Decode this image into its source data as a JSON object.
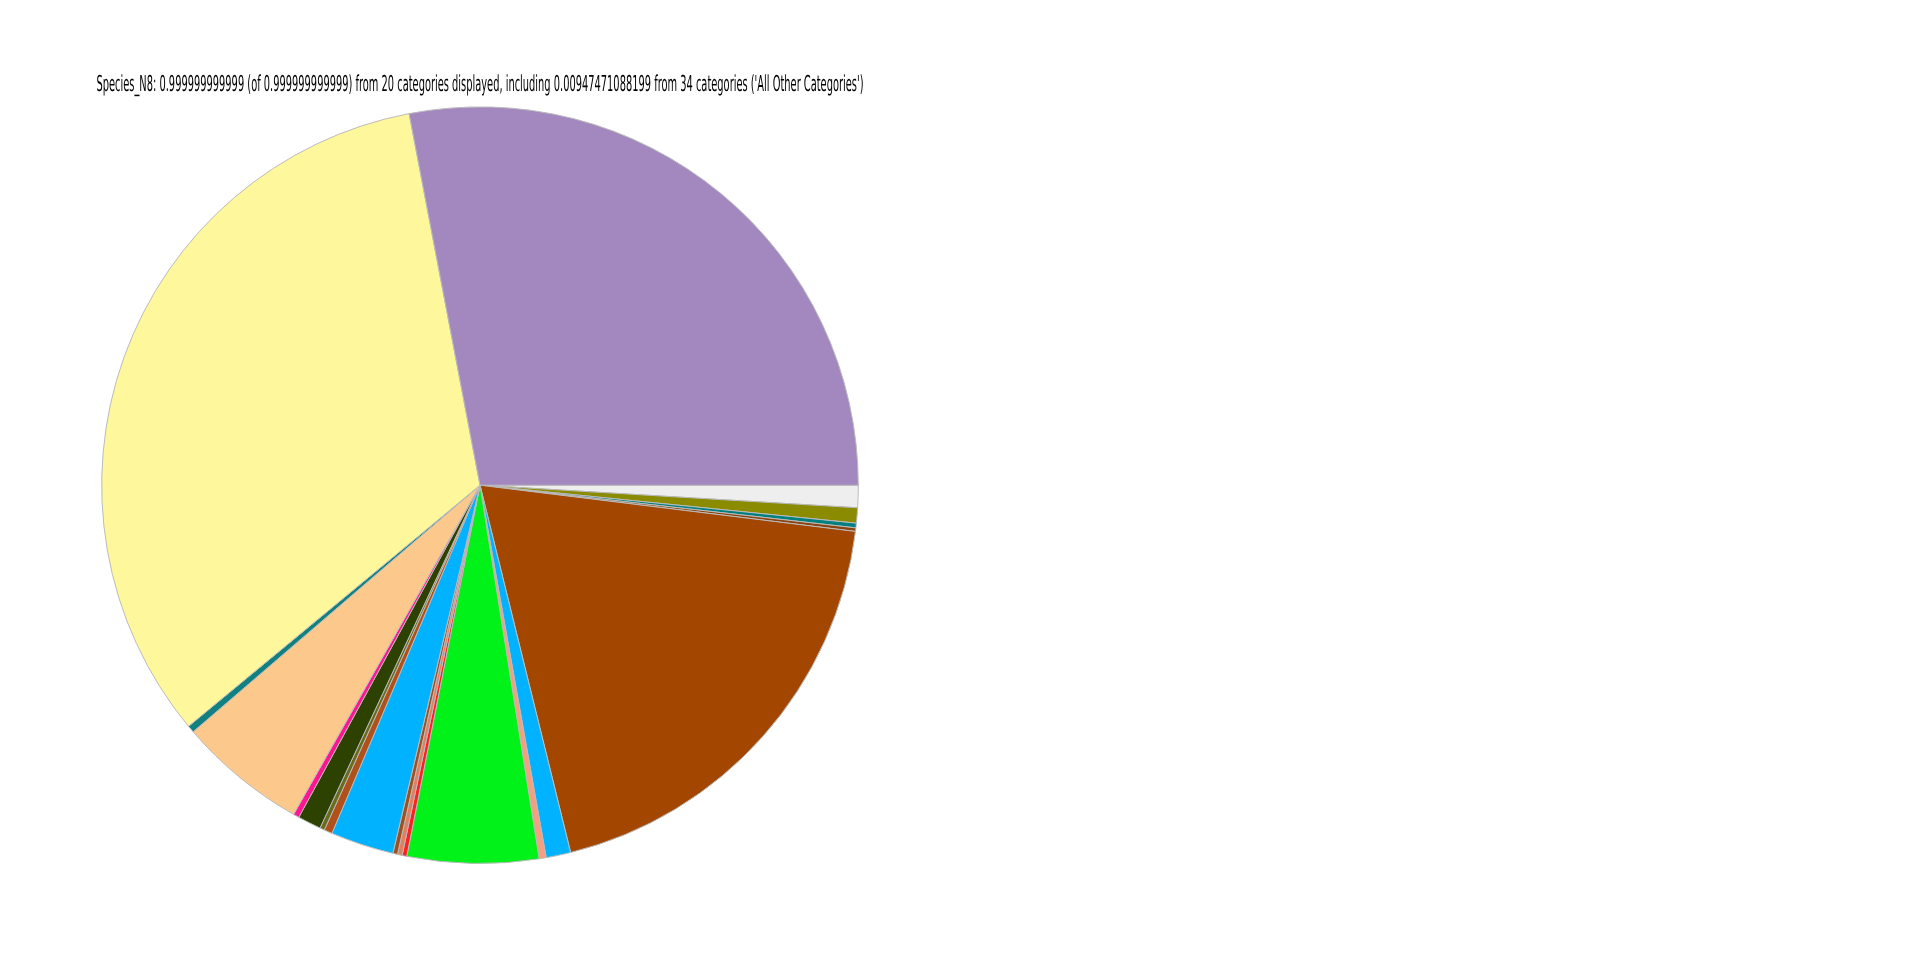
{
  "chart_data": {
    "type": "pie",
    "title": "Species_N8: 0.999999999999 (of 0.999999999999) from 20 categories displayed, including 0.00947471088199 from 34 categories ('All Other Categories')",
    "categories": [
      null,
      null,
      null,
      null,
      null,
      null,
      null,
      null,
      null,
      null,
      null,
      null,
      null,
      null,
      null,
      null,
      null,
      null,
      null,
      null
    ],
    "values": [
      0.95,
      0.65,
      0.2,
      0.15,
      19.2,
      1.05,
      0.3,
      5.6,
      0.2,
      0.2,
      0.2,
      2.7,
      0.35,
      0.2,
      1.0,
      0.25,
      5.5,
      0.3,
      33.0,
      28.0
    ],
    "colors": [
      "#eeeeee",
      "#8b8b00",
      "#008080",
      "#8b4513",
      "#a34700",
      "#00b2ff",
      "#f4a080",
      "#00f218",
      "#ff2020",
      "#e08060",
      "#a05020",
      "#00b2ff",
      "#b0501a",
      "#6b6b20",
      "#2d4200",
      "#ff1493",
      "#fdc88b",
      "#108080",
      "#fef79b",
      "#a387bf"
    ],
    "legend": false
  }
}
